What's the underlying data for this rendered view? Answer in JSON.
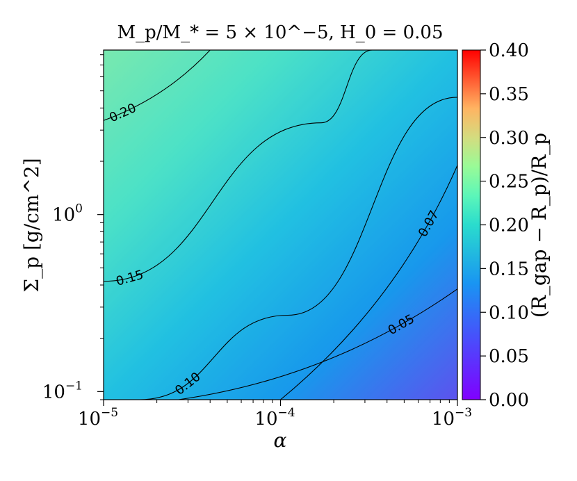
{
  "chart_data": {
    "type": "heatmap",
    "title": "M_p/M_* = 5 × 10^−5, H_0 = 0.05",
    "xlabel": "α",
    "ylabel": "Σ_p [g/cm^2]",
    "x_scale": "log",
    "y_scale": "log",
    "xlim": [
      1e-05,
      0.001
    ],
    "ylim": [
      0.09,
      8.5
    ],
    "grid": false,
    "x_ticks": [
      {
        "value": 1e-05,
        "base": "10",
        "exp": "−5"
      },
      {
        "value": 0.0001,
        "base": "10",
        "exp": "−4"
      },
      {
        "value": 0.001,
        "base": "10",
        "exp": "−3"
      }
    ],
    "y_ticks": [
      {
        "value": 0.1,
        "base": "10",
        "exp": "−1"
      },
      {
        "value": 1,
        "base": "10",
        "exp": "0"
      }
    ],
    "colorbar": {
      "label": "(R_gap − R_p)/R_p",
      "range": [
        0.0,
        0.4
      ],
      "colormap": "rainbow",
      "ticks": [
        "0.00",
        "0.05",
        "0.10",
        "0.15",
        "0.20",
        "0.25",
        "0.30",
        "0.35",
        "0.40"
      ]
    },
    "contours": [
      {
        "level": "0.05",
        "points": [
          [
            2.65e-05,
            0.09
          ],
          [
            0.001,
            0.38
          ]
        ]
      },
      {
        "level": "0.07",
        "points": [
          [
            0.0001,
            0.09
          ],
          [
            0.001,
            1.9
          ]
        ]
      },
      {
        "level": "0.10",
        "points": [
          [
            1.6e-05,
            0.09
          ],
          [
            0.00011,
            0.27
          ],
          [
            0.001,
            4.6
          ]
        ]
      },
      {
        "level": "0.15",
        "points": [
          [
            1e-05,
            0.42
          ],
          [
            0.00017,
            3.3
          ],
          [
            0.00033,
            8.5
          ]
        ]
      },
      {
        "level": "0.20",
        "points": [
          [
            1e-05,
            3.4
          ],
          [
            4e-05,
            8.5
          ]
        ]
      }
    ],
    "field": {
      "value_at": [
        [
          1e-05,
          8.5,
          0.21
        ],
        [
          0.001,
          0.09,
          0.04
        ],
        [
          1e-05,
          0.09,
          0.125
        ],
        [
          0.001,
          8.5,
          0.105
        ]
      ]
    }
  }
}
